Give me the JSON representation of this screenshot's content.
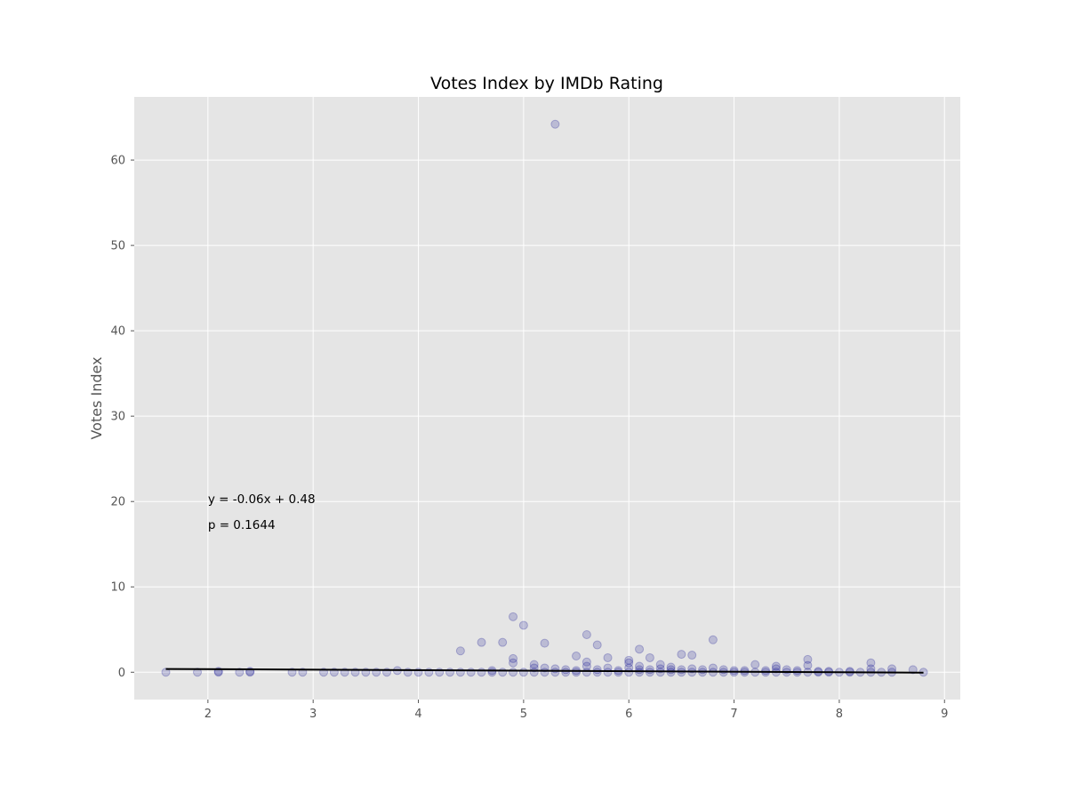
{
  "chart_data": {
    "type": "scatter",
    "title": "Votes Index by IMDb Rating",
    "xlabel": "",
    "ylabel": "Votes Index",
    "xlim": [
      1.3,
      9.15
    ],
    "ylim": [
      -3.2,
      67.4
    ],
    "xticks": [
      2,
      3,
      4,
      5,
      6,
      7,
      8,
      9
    ],
    "yticks": [
      0,
      10,
      20,
      30,
      40,
      50,
      60
    ],
    "grid": true,
    "style": "ggplot",
    "colors": {
      "background": "#e5e5e5",
      "grid": "#ffffff",
      "point": "#00008b",
      "trendline": "#000000"
    },
    "annotations": [
      {
        "text": "y = -0.06x + 0.48",
        "x": 2.0,
        "y": 19.8
      },
      {
        "text": "p = 0.1644",
        "x": 2.0,
        "y": 16.8
      }
    ],
    "trendline": {
      "slope": -0.06,
      "intercept": 0.48,
      "x_range": [
        1.6,
        8.8
      ]
    },
    "points": [
      [
        1.6,
        0
      ],
      [
        1.9,
        0
      ],
      [
        2.1,
        0
      ],
      [
        2.1,
        0.1
      ],
      [
        2.3,
        0
      ],
      [
        2.4,
        0
      ],
      [
        2.4,
        0.1
      ],
      [
        2.8,
        0
      ],
      [
        2.9,
        0
      ],
      [
        3.1,
        0
      ],
      [
        3.2,
        0
      ],
      [
        3.3,
        0
      ],
      [
        3.4,
        0
      ],
      [
        3.5,
        0
      ],
      [
        3.6,
        0
      ],
      [
        3.7,
        0
      ],
      [
        3.8,
        0.2
      ],
      [
        3.9,
        0
      ],
      [
        4.0,
        0
      ],
      [
        4.1,
        0
      ],
      [
        4.2,
        0
      ],
      [
        4.3,
        0
      ],
      [
        4.4,
        0
      ],
      [
        4.4,
        2.5
      ],
      [
        4.5,
        0
      ],
      [
        4.6,
        0
      ],
      [
        4.6,
        3.5
      ],
      [
        4.7,
        0
      ],
      [
        4.7,
        0.2
      ],
      [
        4.8,
        0
      ],
      [
        4.8,
        3.5
      ],
      [
        4.9,
        0
      ],
      [
        4.9,
        1.1
      ],
      [
        4.9,
        1.6
      ],
      [
        4.9,
        6.5
      ],
      [
        5.0,
        0
      ],
      [
        5.0,
        5.5
      ],
      [
        5.1,
        0
      ],
      [
        5.1,
        0.5
      ],
      [
        5.1,
        0.9
      ],
      [
        5.2,
        0
      ],
      [
        5.2,
        0.5
      ],
      [
        5.2,
        3.4
      ],
      [
        5.3,
        0
      ],
      [
        5.3,
        0.4
      ],
      [
        5.3,
        64.2
      ],
      [
        5.4,
        0
      ],
      [
        5.4,
        0.3
      ],
      [
        5.5,
        0
      ],
      [
        5.5,
        0.2
      ],
      [
        5.5,
        1.9
      ],
      [
        5.6,
        0
      ],
      [
        5.6,
        0.7
      ],
      [
        5.6,
        1.2
      ],
      [
        5.6,
        4.4
      ],
      [
        5.7,
        0
      ],
      [
        5.7,
        0.3
      ],
      [
        5.7,
        3.2
      ],
      [
        5.8,
        0
      ],
      [
        5.8,
        0.5
      ],
      [
        5.8,
        1.7
      ],
      [
        5.9,
        0
      ],
      [
        5.9,
        0.2
      ],
      [
        6.0,
        0
      ],
      [
        6.0,
        0.5
      ],
      [
        6.0,
        1.1
      ],
      [
        6.0,
        1.4
      ],
      [
        6.1,
        0
      ],
      [
        6.1,
        0.3
      ],
      [
        6.1,
        0.7
      ],
      [
        6.1,
        2.7
      ],
      [
        6.2,
        0
      ],
      [
        6.2,
        0.3
      ],
      [
        6.2,
        1.7
      ],
      [
        6.3,
        0
      ],
      [
        6.3,
        0.4
      ],
      [
        6.3,
        0.9
      ],
      [
        6.4,
        0
      ],
      [
        6.4,
        0.3
      ],
      [
        6.4,
        0.6
      ],
      [
        6.5,
        0
      ],
      [
        6.5,
        0.3
      ],
      [
        6.5,
        2.1
      ],
      [
        6.6,
        0
      ],
      [
        6.6,
        0.4
      ],
      [
        6.6,
        2.0
      ],
      [
        6.7,
        0
      ],
      [
        6.7,
        0.3
      ],
      [
        6.8,
        0
      ],
      [
        6.8,
        0.5
      ],
      [
        6.8,
        3.8
      ],
      [
        6.9,
        0
      ],
      [
        6.9,
        0.3
      ],
      [
        7.0,
        0
      ],
      [
        7.0,
        0.2
      ],
      [
        7.1,
        0
      ],
      [
        7.1,
        0.2
      ],
      [
        7.2,
        0
      ],
      [
        7.2,
        0.9
      ],
      [
        7.3,
        0
      ],
      [
        7.3,
        0.2
      ],
      [
        7.4,
        0
      ],
      [
        7.4,
        0.4
      ],
      [
        7.4,
        0.7
      ],
      [
        7.5,
        0
      ],
      [
        7.5,
        0.3
      ],
      [
        7.6,
        0
      ],
      [
        7.6,
        0.2
      ],
      [
        7.7,
        0
      ],
      [
        7.7,
        0.8
      ],
      [
        7.7,
        1.5
      ],
      [
        7.8,
        0
      ],
      [
        7.8,
        0.1
      ],
      [
        7.9,
        0
      ],
      [
        7.9,
        0.1
      ],
      [
        8.0,
        0
      ],
      [
        8.1,
        0
      ],
      [
        8.1,
        0.1
      ],
      [
        8.2,
        0
      ],
      [
        8.3,
        0
      ],
      [
        8.3,
        0.4
      ],
      [
        8.3,
        1.1
      ],
      [
        8.4,
        0
      ],
      [
        8.5,
        0
      ],
      [
        8.5,
        0.4
      ],
      [
        8.7,
        0.3
      ],
      [
        8.8,
        0
      ]
    ]
  }
}
